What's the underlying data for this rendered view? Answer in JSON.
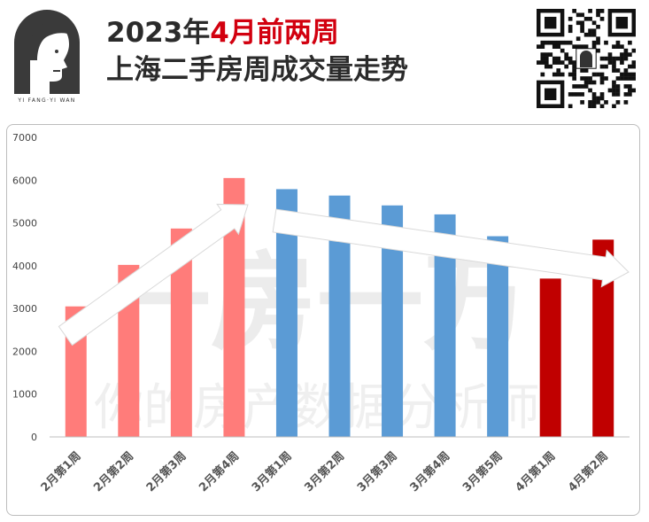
{
  "header": {
    "title_year": "2023年",
    "title_highlight": "4月前两周",
    "subtitle": "上海二手房周成交量走势",
    "logo_text": "YI FANG·YI WAN"
  },
  "watermark": {
    "line1": "一房一万",
    "line2": "你的房产数据分析师"
  },
  "colors": {
    "feb": "#ff7c7a",
    "mar": "#5b9bd5",
    "apr": "#c00000",
    "title_red": "#d2000f",
    "title_dark": "#2b2b2b"
  },
  "chart_data": {
    "type": "bar",
    "title": "",
    "xlabel": "",
    "ylabel": "",
    "ylim": [
      0,
      7000
    ],
    "yticks": [
      0,
      1000,
      2000,
      3000,
      4000,
      5000,
      6000,
      7000
    ],
    "grid": false,
    "legend": "none",
    "categories": [
      "2月第1周",
      "2月第2周",
      "2月第3周",
      "2月第4周",
      "3月第1周",
      "3月第2周",
      "3月第3周",
      "3月第4周",
      "3月第5周",
      "4月第1周",
      "4月第2周"
    ],
    "values": [
      3050,
      4020,
      4870,
      6050,
      5790,
      5640,
      5410,
      5200,
      4690,
      3700,
      4610
    ],
    "bar_colors": [
      "#ff7c7a",
      "#ff7c7a",
      "#ff7c7a",
      "#ff7c7a",
      "#5b9bd5",
      "#5b9bd5",
      "#5b9bd5",
      "#5b9bd5",
      "#5b9bd5",
      "#c00000",
      "#c00000"
    ]
  }
}
